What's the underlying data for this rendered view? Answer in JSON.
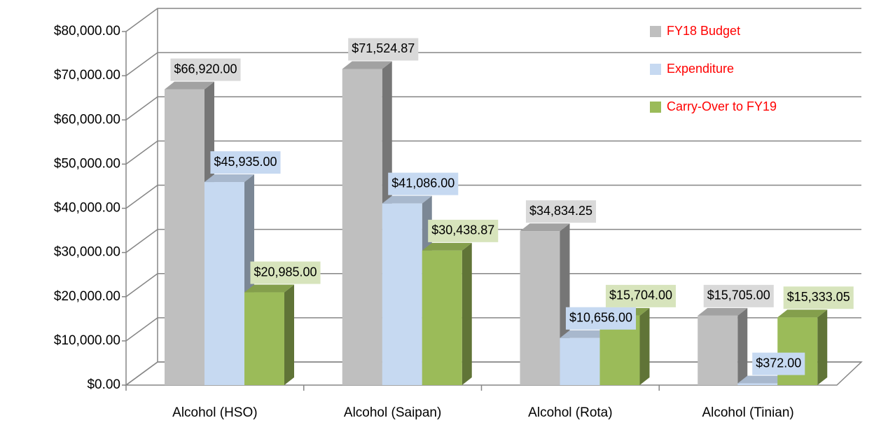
{
  "chart_data": {
    "type": "bar3d",
    "categories": [
      "Alcohol (HSO)",
      "Alcohol (Saipan)",
      "Alcohol (Rota)",
      "Alcohol (Tinian)"
    ],
    "series": [
      {
        "name": "FY18 Budget",
        "color": "#bfbfbf",
        "values": [
          66920,
          71524.87,
          34834.25,
          15705
        ],
        "value_labels": [
          "$66,920.00",
          "$71,524.87",
          "$34,834.25",
          "$15,705.00"
        ]
      },
      {
        "name": "Expenditure",
        "color": "#c6d9f1",
        "values": [
          45935,
          41086,
          10656,
          372
        ],
        "value_labels": [
          "$45,935.00",
          "$41,086.00",
          "$10,656.00",
          "$372.00"
        ]
      },
      {
        "name": "Carry-Over to FY19",
        "color": "#9bbb59",
        "values": [
          20985,
          30438.87,
          15704,
          15333.05
        ],
        "value_labels": [
          "$20,985.00",
          "$30,438.87",
          "$15,704.00",
          "$15,333.05"
        ]
      }
    ],
    "ylim": [
      0,
      80000
    ],
    "yticks": [
      {
        "value": 0,
        "label": "$0.00"
      },
      {
        "value": 10000,
        "label": "$10,000.00"
      },
      {
        "value": 20000,
        "label": "$20,000.00"
      },
      {
        "value": 30000,
        "label": "$30,000.00"
      },
      {
        "value": 40000,
        "label": "$40,000.00"
      },
      {
        "value": 50000,
        "label": "$50,000.00"
      },
      {
        "value": 60000,
        "label": "$60,000.00"
      },
      {
        "value": 70000,
        "label": "$70,000.00"
      },
      {
        "value": 80000,
        "label": "$80,000.00"
      }
    ],
    "grid": true,
    "legend": "top-right",
    "legend_text_color": "#ff0000"
  }
}
